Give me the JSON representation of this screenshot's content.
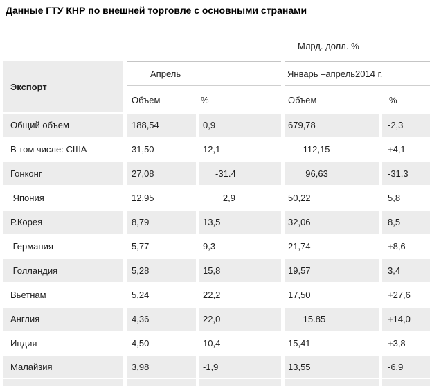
{
  "title": "Данные ГТУ КНР по внешней торговле с основными странами",
  "units_label": "Млрд. долл. %",
  "table": {
    "corner_header": "Экспорт",
    "col_groups": [
      "Апрель",
      "Январь –апрель2014 г."
    ],
    "sub_headers": [
      "Объем",
      "%",
      "Объем",
      "%"
    ],
    "rows": [
      {
        "label": "Общий объем",
        "cells": [
          "188,54",
          "0,9",
          "679,78",
          "-2,3"
        ]
      },
      {
        "label": "В том числе: США",
        "cells": [
          "31,50",
          "12,1",
          "      112,15",
          "+4,1"
        ]
      },
      {
        "label": "Гонконг",
        "cells": [
          "27,08",
          "     -31.4",
          "       96,63",
          "-31,3"
        ]
      },
      {
        "label": " Япония",
        "cells": [
          "12,95",
          "        2,9",
          "50,22",
          "5,8"
        ]
      },
      {
        "label": "Р.Корея",
        "cells": [
          "8,79",
          "13,5",
          "32,06",
          "8,5"
        ]
      },
      {
        "label": " Германия",
        "cells": [
          "5,77",
          "9,3",
          "21,74",
          "+8,6"
        ]
      },
      {
        "label": " Голландия",
        "cells": [
          "5,28",
          "15,8",
          "19,57",
          "3,4"
        ]
      },
      {
        "label": "Вьетнам",
        "cells": [
          "5,24",
          "22,2",
          "17,50",
          "+27,6"
        ]
      },
      {
        "label": "Англия",
        "cells": [
          "4,36",
          "22,0",
          "      15.85",
          "+14,0"
        ]
      },
      {
        "label": "Индия",
        "cells": [
          "4,50",
          "10,4",
          "15,41",
          "+3,8"
        ]
      },
      {
        "label": "Малайзия",
        "cells": [
          "3,98",
          "-1,9",
          "13,55",
          "-6,9"
        ]
      }
    ]
  },
  "colors": {
    "row_shade_bg": "#ececec",
    "header_border_top": "#c5c5c5",
    "header_border_bottom": "#cfcfcf",
    "text": "#1f1f1f"
  }
}
